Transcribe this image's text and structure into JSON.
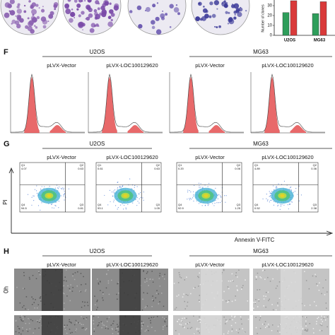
{
  "panel_e": {
    "y_axis_label": "Number of clones",
    "ylim": [
      0,
      40
    ],
    "yticks": [
      0,
      10,
      20,
      30
    ],
    "groups": [
      "U2OS",
      "MG63"
    ],
    "series": [
      {
        "color": "#2e9e5b",
        "values": [
          23,
          22
        ]
      },
      {
        "color": "#d93a3a",
        "values": [
          35,
          34
        ]
      }
    ]
  },
  "panel_f": {
    "letter": "F",
    "cell_lines": [
      "U2OS",
      "MG63"
    ],
    "conditions": [
      "pLVX-Vector",
      "pLVX-LOC100129620",
      "pLVX-Vector",
      "pLVX-LOC100129620"
    ]
  },
  "panel_g": {
    "letter": "G",
    "cell_lines": [
      "U2OS",
      "MG63"
    ],
    "conditions": [
      "pLVX-Vector",
      "pLVX-LOC100129620",
      "pLVX-Vector",
      "pLVX-LOC100129620"
    ],
    "y_axis_label": "PI",
    "x_axis_label": "Annexin V-FITC",
    "quadrant_names": [
      "Q1",
      "Q2",
      "Q3",
      "Q4"
    ],
    "plots": [
      {
        "q1": "4.07",
        "q2": "0.63",
        "q3": "0.81",
        "q4": "94.5"
      },
      {
        "q1": "0.61",
        "q2": "0.63",
        "q3": "1.05",
        "q4": "93.1"
      },
      {
        "q1": "0.20",
        "q2": "0.06",
        "q3": "1.25",
        "q4": "92.9"
      },
      {
        "q1": "4.89",
        "q2": "0.36",
        "q3": "2.38",
        "q4": "0.52"
      }
    ]
  },
  "panel_h": {
    "letter": "H",
    "cell_lines": [
      "U2OS",
      "MG63"
    ],
    "conditions": [
      "pLVX-Vector",
      "pLVX-LOC100129620",
      "pLVX-Vector",
      "pLVX-LOC100129620"
    ],
    "row_labels": [
      "0h"
    ]
  }
}
